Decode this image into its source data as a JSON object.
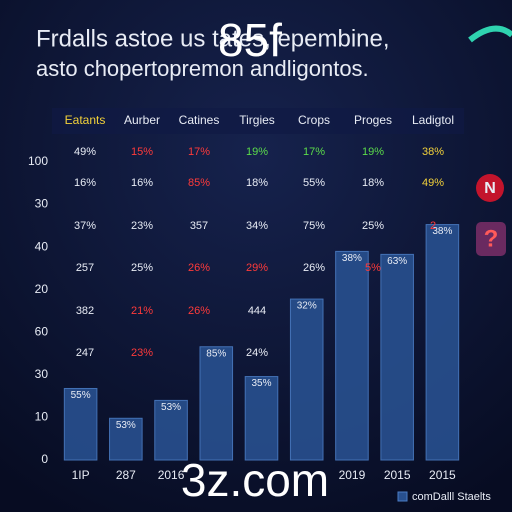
{
  "chart_data": {
    "type": "bar",
    "title": "Frdalls astoe us tates, epembine,",
    "subtitle": "asto chopertopremon andligontos.",
    "watermarks": [
      "85f",
      "3z.com"
    ],
    "badges": [
      "N",
      "?"
    ],
    "y_labels": [
      "100",
      "30",
      "40",
      "20",
      "60",
      "30",
      "10",
      "0"
    ],
    "ylim": [
      0,
      100
    ],
    "categories": [
      "1IP",
      "287",
      "2016",
      null,
      null,
      null,
      "2019",
      "2015",
      "2015"
    ],
    "series": [
      {
        "name": "comDalll Staelts",
        "color": "#28508f",
        "values": [
          24,
          14,
          20,
          38,
          28,
          54,
          70,
          69,
          79
        ]
      }
    ],
    "bar_tags": [
      "55%",
      "53%",
      "53%",
      "85%",
      "35%",
      "32%",
      "38%",
      "63%",
      "38%"
    ],
    "table": {
      "header": [
        "Eatants",
        "Aurber",
        "Catines",
        "Tirgies",
        "Crops",
        "Proges",
        "Ladigtol"
      ],
      "header_colors": [
        "#f2d13a",
        "#e8ecf5",
        "#e8ecf5",
        "#e8ecf5",
        "#e8ecf5",
        "#e8ecf5",
        "#e8ecf5"
      ],
      "rows": [
        {
          "cells": [
            "49%",
            "15%",
            "17%",
            "19%",
            "17%",
            "19%",
            "38%"
          ],
          "colors": [
            "#e8ecf5",
            "#ff3a3a",
            "#ff3a3a",
            "#5bdc4a",
            "#5bdc4a",
            "#5bdc4a",
            "#f2d13a"
          ]
        },
        {
          "cells": [
            "16%",
            "16%",
            "85%",
            "18%",
            "55%",
            "18%",
            "49%"
          ],
          "colors": [
            "#e8ecf5",
            "#e8ecf5",
            "#ff3a3a",
            "#e8ecf5",
            "#e8ecf5",
            "#e8ecf5",
            "#f2d13a"
          ]
        },
        {
          "cells": [
            "37%",
            "23%",
            "357",
            "34%",
            "75%",
            "25%",
            "2"
          ],
          "colors": [
            "#e8ecf5",
            "#e8ecf5",
            "#e8ecf5",
            "#e8ecf5",
            "#e8ecf5",
            "#e8ecf5",
            "#ff3a3a"
          ]
        },
        {
          "cells": [
            "257",
            "25%",
            "26%",
            "29%",
            "26%",
            "5%",
            null
          ],
          "colors": [
            "#e8ecf5",
            "#e8ecf5",
            "#ff3a3a",
            "#ff3a3a",
            "#e8ecf5",
            "#ff3a3a",
            "#e8ecf5"
          ]
        },
        {
          "cells": [
            "382",
            "21%",
            "26%",
            "444",
            null,
            null,
            null
          ],
          "colors": [
            "#e8ecf5",
            "#ff3a3a",
            "#ff3a3a",
            "#e8ecf5",
            "#e8ecf5",
            "#e8ecf5",
            "#e8ecf5"
          ]
        },
        {
          "cells": [
            "247",
            "23%",
            null,
            "24%",
            null,
            null,
            null
          ],
          "colors": [
            "#e8ecf5",
            "#ff3a3a",
            "#e8ecf5",
            "#e8ecf5",
            "#e8ecf5",
            "#e8ecf5",
            "#e8ecf5"
          ]
        }
      ]
    }
  }
}
